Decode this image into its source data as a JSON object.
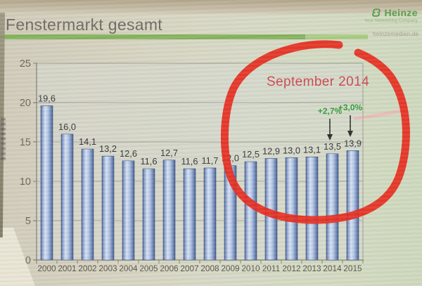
{
  "header": {
    "title": "Fenstermarkt gesamt",
    "logo_text": "Heinze",
    "logo_tagline": "Your Networking Company",
    "website": "heinzemedien.de"
  },
  "annotations": {
    "date_label": "September 2014",
    "pct_2014": "+2,7%",
    "pct_2015": "+3,0%"
  },
  "chart_data": {
    "type": "bar",
    "title": "Fenstermarkt gesamt",
    "categories": [
      "2000",
      "2001",
      "2002",
      "2003",
      "2004",
      "2005",
      "2006",
      "2007",
      "2008",
      "2009",
      "2010",
      "2011",
      "2012",
      "2013",
      "2014",
      "2015"
    ],
    "values": [
      19.6,
      16.0,
      14.1,
      13.2,
      12.6,
      11.6,
      12.7,
      11.6,
      11.7,
      12.0,
      12.5,
      12.9,
      13.0,
      13.1,
      13.5,
      13.9
    ],
    "xlabel": "",
    "ylabel": "",
    "ylim": [
      0,
      25
    ],
    "yticks": [
      0,
      5,
      10,
      15,
      20,
      25
    ],
    "grid": true,
    "decimal_separator": ",",
    "bar_color_center": "#d4e0f3",
    "bar_color_edge": "#4a5f94",
    "accent_circle_color": "#e6281b",
    "annotation_red": "#cb4553",
    "annotation_green": "#2f9b38"
  }
}
